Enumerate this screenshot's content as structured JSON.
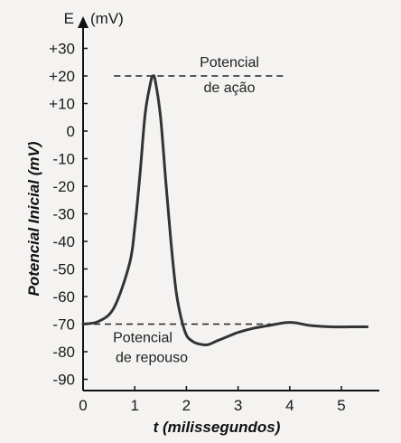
{
  "chart_data": {
    "type": "line",
    "title": "",
    "y_axis_symbol": "E",
    "y_axis_unit": "(mV)",
    "ylabel": "Potencial Inicial (mV)",
    "xlabel": "t (milissegundos)",
    "xlim": [
      0,
      5.5
    ],
    "ylim": [
      -95,
      37
    ],
    "x_ticks": [
      0,
      1,
      2,
      3,
      4,
      5
    ],
    "x_tick_labels": [
      "0",
      "1",
      "2",
      "3",
      "4",
      "5"
    ],
    "y_ticks": [
      30,
      20,
      10,
      0,
      -10,
      -20,
      -30,
      -40,
      -50,
      -60,
      -70,
      -80,
      -90
    ],
    "y_tick_labels": [
      "+30",
      "+20",
      "+10",
      "0",
      "-10",
      "-20",
      "-30",
      "-40",
      "-50",
      "-60",
      "-70",
      "-80",
      "-90"
    ],
    "grid": false,
    "series": [
      {
        "color": "#333333",
        "x": [
          0,
          0.3,
          0.6,
          0.9,
          1.0,
          1.1,
          1.2,
          1.3,
          1.35,
          1.4,
          1.5,
          1.6,
          1.7,
          1.8,
          1.9,
          2.0,
          2.1,
          2.2,
          2.4,
          2.6,
          2.8,
          3.0,
          3.3,
          3.6,
          3.9,
          4.1,
          4.4,
          4.8,
          5.2,
          5.5
        ],
        "y": [
          -70,
          -69,
          -64,
          -48,
          -35,
          -16,
          6,
          17,
          20,
          18,
          5,
          -18,
          -40,
          -58,
          -68,
          -74,
          -76,
          -77,
          -77.5,
          -76,
          -74.5,
          -73,
          -71.5,
          -70.5,
          -69.5,
          -69.5,
          -70.5,
          -71,
          -71,
          -71
        ]
      }
    ],
    "reference_lines": [
      {
        "y": 20,
        "label_line1": "Potencial",
        "label_line2": "de ação"
      },
      {
        "y": -70,
        "label_line1": "Potencial",
        "label_line2": "de repouso"
      }
    ]
  }
}
